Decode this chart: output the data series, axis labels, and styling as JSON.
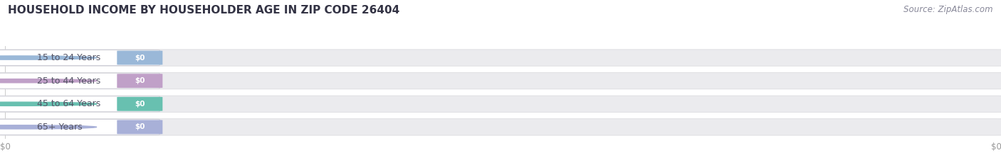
{
  "title": "HOUSEHOLD INCOME BY HOUSEHOLDER AGE IN ZIP CODE 26404",
  "source_text": "Source: ZipAtlas.com",
  "categories": [
    "15 to 24 Years",
    "25 to 44 Years",
    "45 to 64 Years",
    "65+ Years"
  ],
  "values": [
    0,
    0,
    0,
    0
  ],
  "bar_colors": [
    "#9ab8d8",
    "#c0a0c8",
    "#68c0b0",
    "#a8b0d8"
  ],
  "background_color": "#ffffff",
  "bar_bg_color": "#ebebee",
  "title_fontsize": 11,
  "source_fontsize": 8.5,
  "tick_label": "$0"
}
